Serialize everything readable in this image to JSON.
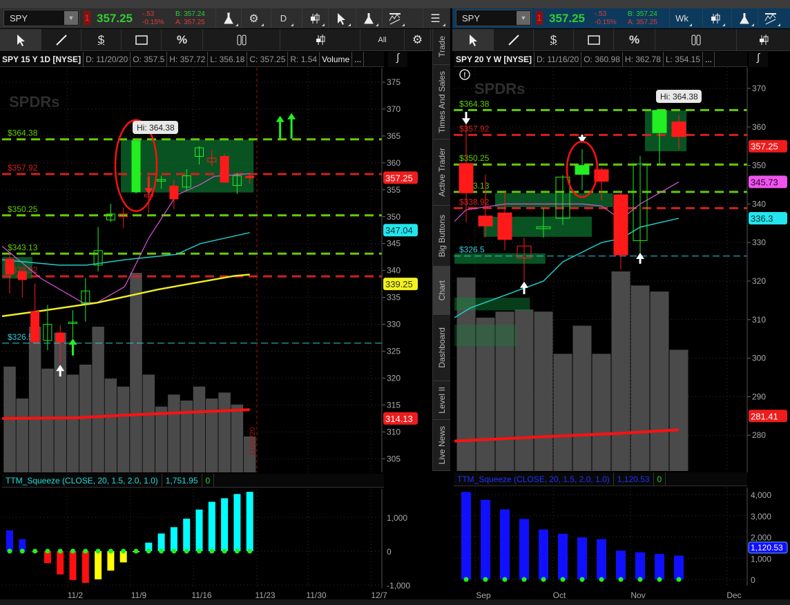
{
  "left": {
    "header": {
      "symbol": "SPY",
      "badge": "1",
      "last": "357.25",
      "change": "-.53",
      "change_pct": "-0.15%",
      "bid": "B: 357.24",
      "ask": "A: 357.25",
      "aggregation": "D"
    },
    "toolbar": {
      "all_label": "All"
    },
    "info": {
      "title": "SPY 15 Y 1D [NYSE]",
      "date": "D: 11/20/20",
      "open": "O: 357.5",
      "high": "H: 357.72",
      "low": "L: 356.18",
      "close": "C: 357.25",
      "range": "R: 1.54",
      "volume": "Volume",
      "more": "..."
    },
    "price_axis": [
      "375",
      "370",
      "365",
      "360",
      "355",
      "350",
      "345",
      "340",
      "335",
      "330",
      "325",
      "320",
      "315",
      "310",
      "305"
    ],
    "levels": [
      {
        "label": "$364.38",
        "price": 364.38,
        "kind": "resistance",
        "color": "#66cc00"
      },
      {
        "label": "$357.92",
        "price": 357.92,
        "kind": "red",
        "color": "#d42020"
      },
      {
        "label": "$350.25",
        "price": 350.25,
        "kind": "resistance",
        "color": "#66cc00"
      },
      {
        "label": "$343.13",
        "price": 343.13,
        "kind": "resistance",
        "color": "#66cc00"
      },
      {
        "label": "$338.92",
        "price": 338.92,
        "kind": "red",
        "color": "#d42020"
      },
      {
        "label": "$326.5",
        "price": 326.5,
        "kind": "thin",
        "color": "#33ccdd"
      }
    ],
    "candles": [
      {
        "o": 342.1,
        "h": 343.3,
        "l": 335.7,
        "c": 339.3,
        "style": "filled"
      },
      {
        "o": 339.8,
        "h": 340,
        "l": 335,
        "c": 338.3,
        "style": "filled"
      },
      {
        "o": 332.4,
        "h": 337.6,
        "l": 326.7,
        "c": 326.7,
        "style": "filled"
      },
      {
        "o": 327,
        "h": 333.6,
        "l": 325.2,
        "c": 330,
        "style": "hollow"
      },
      {
        "o": 328.4,
        "h": 329.9,
        "l": 322.9,
        "c": 326.7,
        "style": "filled"
      },
      {
        "o": 330.2,
        "h": 332.6,
        "l": 327.4,
        "c": 330.4,
        "style": "hollow"
      },
      {
        "o": 333.9,
        "h": 338.6,
        "l": 330.5,
        "c": 336.2,
        "style": "hollow"
      },
      {
        "o": 341,
        "h": 348.1,
        "l": 339.8,
        "c": 343.7,
        "style": "hollow"
      },
      {
        "o": 349.4,
        "h": 352.4,
        "l": 349,
        "c": 350.5,
        "style": "hollow"
      },
      {
        "o": 350.5,
        "h": 351.7,
        "l": 347.9,
        "c": 350,
        "style": "hollow"
      },
      {
        "o": 354.6,
        "h": 364.38,
        "l": 354.3,
        "c": 364.1,
        "style": "filled"
      },
      {
        "o": 354.1,
        "h": 356,
        "l": 350.7,
        "c": 353.7,
        "style": "hollow"
      },
      {
        "o": 356.6,
        "h": 357.6,
        "l": 355.2,
        "c": 356.9,
        "style": "hollow"
      },
      {
        "o": 355.7,
        "h": 356.8,
        "l": 351.4,
        "c": 353.3,
        "style": "filled"
      },
      {
        "o": 355.5,
        "h": 358.8,
        "l": 354.9,
        "c": 357.6,
        "style": "hollow"
      },
      {
        "o": 361.2,
        "h": 363.1,
        "l": 359.7,
        "c": 362.8,
        "style": "hollow"
      },
      {
        "o": 360.9,
        "h": 362.4,
        "l": 359.4,
        "c": 360.2,
        "style": "hollow"
      },
      {
        "o": 361.2,
        "h": 361.7,
        "l": 356.4,
        "c": 356.4,
        "style": "filled"
      },
      {
        "o": 355.8,
        "h": 358.1,
        "l": 354.2,
        "c": 357.6,
        "style": "hollow"
      },
      {
        "o": 357.5,
        "h": 358,
        "l": 356.1,
        "c": 357.25,
        "style": "filled"
      }
    ],
    "volume_relative": [
      53,
      37,
      73,
      52,
      70,
      49,
      54,
      73,
      47,
      43,
      100,
      49,
      33,
      39,
      36,
      43,
      37,
      40,
      34,
      18
    ],
    "zones": [
      {
        "from": 8.8,
        "to": 19.3,
        "low": 354.5,
        "high": 364.3,
        "opacity": 0.6
      },
      {
        "from": -0.6,
        "to": 1.8,
        "low": 338.5,
        "high": 342.5,
        "opacity": 0.6
      }
    ],
    "moving_averages": [
      {
        "color": "#dd55dd",
        "width": 1.2,
        "points": [
          [
            -0.6,
            344.5
          ],
          [
            2.5,
            338.5
          ],
          [
            5.8,
            334
          ],
          [
            6.9,
            334
          ],
          [
            9.1,
            337
          ],
          [
            11,
            346
          ],
          [
            13.2,
            354
          ],
          [
            15.1,
            356
          ],
          [
            16.2,
            357.5
          ],
          [
            19,
            358
          ]
        ]
      },
      {
        "color": "#22cccc",
        "width": 1.5,
        "points": [
          [
            -0.6,
            342
          ],
          [
            3.9,
            341
          ],
          [
            6.1,
            341
          ],
          [
            9.1,
            342
          ],
          [
            13.2,
            343
          ],
          [
            15.1,
            345
          ],
          [
            19,
            347.04
          ]
        ]
      },
      {
        "color": "#eeee22",
        "width": 2.5,
        "points": [
          [
            -0.6,
            331.5
          ],
          [
            2.5,
            332.5
          ],
          [
            6.9,
            334
          ],
          [
            11.8,
            336.5
          ],
          [
            17.8,
            339
          ],
          [
            19,
            339.25
          ]
        ]
      },
      {
        "color": "#ff1111",
        "width": 4,
        "points": [
          [
            -0.6,
            312.5
          ],
          [
            5,
            312.6
          ],
          [
            10,
            313.2
          ],
          [
            19,
            314.13
          ]
        ]
      }
    ],
    "arrows": [
      {
        "bar": 21.4,
        "top": 368.5,
        "bottom": 364.5,
        "dir": "up",
        "color": "#22ee22"
      },
      {
        "bar": 22.3,
        "top": 369,
        "bottom": 364.5,
        "dir": "up",
        "color": "#22ee22"
      },
      {
        "bar": 11,
        "top": 357.5,
        "bottom": 354.4,
        "dir": "down",
        "color": "#ff2222"
      },
      {
        "bar": 5,
        "top": 327.1,
        "bottom": 324.2,
        "dir": "up",
        "color": "#22ee22"
      },
      {
        "bar": 4,
        "top": 322.2,
        "bottom": 320.3,
        "dir": "up",
        "color": "#ffffff"
      }
    ],
    "highlight": {
      "bar": 10,
      "price": 359.5,
      "hi_label": "Hi: 364.38"
    },
    "price_tags": [
      {
        "value": "357.25",
        "price": 357.25,
        "bg": "#ee1c1c",
        "fg": "#ffffff"
      },
      {
        "value": "347.04",
        "price": 347.04,
        "bg": "#22e5ee",
        "fg": "#003333"
      },
      {
        "value": "339.25",
        "price": 339.25,
        "bg": "#f2f222",
        "fg": "#333300"
      },
      {
        "value": "314.13",
        "price": 314.13,
        "bg": "#ee1c1c",
        "fg": "#ffffff"
      }
    ],
    "cursor_date": "11/20/20",
    "squeeze": {
      "title": "TTM_Squeeze (CLOSE, 20, 1.5, 2.0, 1.0)",
      "value": "1,751.95",
      "signal": "0",
      "axis": [
        "1,000",
        "0",
        "-1,000"
      ],
      "values": [
        614,
        354,
        -20,
        -354,
        -688,
        -854,
        -938,
        -833,
        -576,
        -333,
        -15,
        250,
        521,
        708,
        958,
        1229,
        1458,
        1563,
        1688,
        1751.95
      ],
      "colors": [
        "#1010ff",
        "#1010ff",
        "#ff1010",
        "#ff1010",
        "#ff1010",
        "#ff1010",
        "#ff1010",
        "#ffff00",
        "#ffff00",
        "#ffff00",
        "#ffff00",
        "#00ffff",
        "#00ffff",
        "#00ffff",
        "#00ffff",
        "#00ffff",
        "#00ffff",
        "#00ffff",
        "#00ffff",
        "#00ffff"
      ]
    },
    "dates": [
      "11/2",
      "11/9",
      "11/16",
      "11/23",
      "11/30",
      "12/7"
    ]
  },
  "right": {
    "header": {
      "symbol": "SPY",
      "badge": "1",
      "last": "357.25",
      "change": "-.53",
      "change_pct": "-0.15%",
      "bid": "B: 357.24",
      "ask": "A: 357.25",
      "aggregation": "Wk"
    },
    "info": {
      "title": "SPY 20 Y W [NYSE]",
      "date": "D: 11/16/20",
      "open": "O: 360.98",
      "high": "H: 362.78",
      "low": "L: 354.15",
      "more": "..."
    },
    "price_axis": [
      "370",
      "360",
      "350",
      "340",
      "330",
      "320",
      "310",
      "300",
      "290",
      "280"
    ],
    "levels": [
      {
        "label": "$364.38",
        "price": 364.38,
        "kind": "resistance",
        "color": "#66cc00"
      },
      {
        "label": "$357.92",
        "price": 357.92,
        "kind": "red",
        "color": "#d42020"
      },
      {
        "label": "$350.25",
        "price": 350.25,
        "kind": "resistance",
        "color": "#66cc00"
      },
      {
        "label": "$343.13",
        "price": 343.13,
        "kind": "resistance",
        "color": "#66cc00"
      },
      {
        "label": "$338.92",
        "price": 338.92,
        "kind": "red",
        "color": "#d42020"
      },
      {
        "label": "$326.5",
        "price": 326.5,
        "kind": "thin",
        "color": "#33ccdd"
      }
    ],
    "candles": [
      {
        "o": 350.5,
        "h": 362.5,
        "l": 335.3,
        "c": 342.9,
        "style": "filled"
      },
      {
        "o": 336.9,
        "h": 347.6,
        "l": 331.3,
        "c": 334.3,
        "style": "filled"
      },
      {
        "o": 337.7,
        "h": 343.2,
        "l": 328,
        "c": 330.8,
        "style": "filled"
      },
      {
        "o": 329.1,
        "h": 331.3,
        "l": 320,
        "c": 326,
        "style": "hollow"
      },
      {
        "o": 333.6,
        "h": 338.9,
        "l": 331.3,
        "c": 334.1,
        "style": "hollow"
      },
      {
        "o": 336.3,
        "h": 347.5,
        "l": 334.6,
        "c": 347,
        "style": "hollow"
      },
      {
        "o": 347.7,
        "h": 354.2,
        "l": 343.6,
        "c": 350,
        "style": "filled"
      },
      {
        "o": 348.9,
        "h": 349.5,
        "l": 341,
        "c": 345.9,
        "style": "filled"
      },
      {
        "o": 342.4,
        "h": 343.2,
        "l": 323,
        "c": 326.8,
        "style": "filled"
      },
      {
        "o": 330.5,
        "h": 352.5,
        "l": 327.4,
        "c": 350.4,
        "style": "hollow"
      },
      {
        "o": 358.5,
        "h": 364.38,
        "l": 350.4,
        "c": 364.3,
        "style": "filled"
      },
      {
        "o": 361.3,
        "h": 363,
        "l": 354.3,
        "c": 357.5,
        "style": "filled"
      }
    ],
    "volume_relative": [
      97,
      77,
      80,
      81,
      80,
      59,
      73,
      59,
      100,
      93,
      90,
      61
    ],
    "zones": [
      {
        "from": 1.5,
        "to": 7.6,
        "low": 339.2,
        "high": 342.8,
        "opacity": 0.6
      },
      {
        "from": 0.9,
        "to": 6.5,
        "low": 331.5,
        "high": 336.7,
        "opacity": 0.6
      },
      {
        "from": -0.6,
        "to": 4.1,
        "low": 324.5,
        "high": 327.2,
        "opacity": 0.6
      },
      {
        "from": 9.25,
        "to": 11.4,
        "low": 353.7,
        "high": 364.3,
        "opacity": 0.6
      },
      {
        "from": -0.6,
        "to": 3.3,
        "low": 312.4,
        "high": 315.7,
        "opacity": 0.45
      },
      {
        "from": -0.6,
        "to": 2.6,
        "low": 303.1,
        "high": 308.7,
        "opacity": 0.3
      }
    ],
    "moving_averages": [
      {
        "color": "#dd55dd",
        "width": 1.2,
        "points": [
          [
            -0.6,
            335.5
          ],
          [
            0,
            338.5
          ],
          [
            2,
            340
          ],
          [
            4,
            340
          ],
          [
            6,
            340
          ],
          [
            7,
            339.5
          ],
          [
            8,
            336
          ],
          [
            9,
            340
          ],
          [
            11,
            345.73
          ]
        ]
      },
      {
        "color": "#22cccc",
        "width": 1.5,
        "points": [
          [
            -0.6,
            310.5
          ],
          [
            0.2,
            313
          ],
          [
            4,
            320
          ],
          [
            5,
            325
          ],
          [
            7,
            330
          ],
          [
            8,
            331
          ],
          [
            9,
            334
          ],
          [
            11,
            336.3
          ]
        ]
      },
      {
        "color": "#ff1111",
        "width": 4,
        "points": [
          [
            -0.6,
            278.5
          ],
          [
            4,
            279.6
          ],
          [
            8,
            280.5
          ],
          [
            11,
            281.41
          ]
        ]
      }
    ],
    "arrows": [
      {
        "bar": 0,
        "top": 363.9,
        "bottom": 361,
        "dir": "down",
        "color": "#ffffff"
      },
      {
        "bar": 6,
        "top": 358,
        "bottom": 356.2,
        "dir": "down",
        "color": "#ffffff"
      },
      {
        "bar": 3,
        "top": 319.5,
        "bottom": 316.6,
        "dir": "up",
        "color": "#ffffff"
      },
      {
        "bar": 9,
        "top": 327,
        "bottom": 324.5,
        "dir": "up",
        "color": "#ffffff"
      }
    ],
    "highlight": {
      "bar": 6,
      "price": 349,
      "hi_label": "Hi: 364.38"
    },
    "price_tags": [
      {
        "value": "357.25",
        "price": 357.25,
        "bg": "#ee1c1c",
        "fg": "#ffffff"
      },
      {
        "value": "345.73",
        "price": 345.73,
        "bg": "#ee55ee",
        "fg": "#330033"
      },
      {
        "value": "336.3",
        "price": 336.3,
        "bg": "#22e5ee",
        "fg": "#003333"
      },
      {
        "value": "281.41",
        "price": 281.41,
        "bg": "#ee1c1c",
        "fg": "#ffffff"
      }
    ],
    "squeeze": {
      "title": "TTM_Squeeze (CLOSE, 20, 1.5, 2.0, 1.0)",
      "value": "1,120.53",
      "signal": "0",
      "axis": [
        "4,000",
        "3,000",
        "2,000",
        "1,000",
        "0"
      ],
      "values": [
        4120,
        3750,
        3300,
        2850,
        2350,
        2150,
        1980,
        1900,
        1360,
        1280,
        1200,
        1120.53
      ],
      "color": "#1010ff"
    },
    "dates": [
      "Sep",
      "Oct",
      "Nov",
      "Dec"
    ]
  },
  "tabs": [
    "Trade",
    "Times And Sales",
    "Active Trader",
    "Big Buttons",
    "Chart",
    "Dashboard",
    "Level II",
    "Live News"
  ],
  "active_tab": "Chart",
  "colors": {
    "up": "#22ee22",
    "down": "#ff1a1a",
    "zone": "#0f8a3a",
    "volume": "#4a4a4a"
  }
}
